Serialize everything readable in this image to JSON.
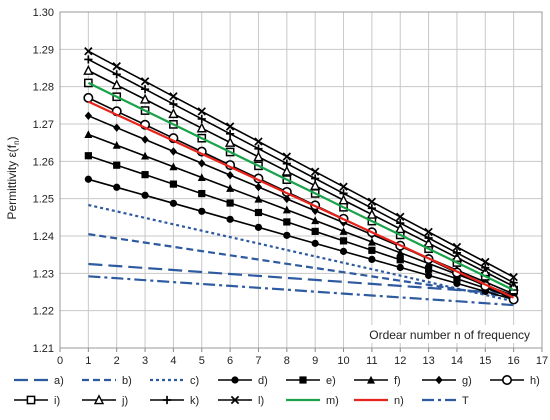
{
  "chart_data": {
    "type": "line",
    "ylabel": "Permittivity ε(f_n)",
    "ylabel_main": "Permittivity ε(f",
    "ylabel_sub": "n",
    "ylabel_end": ")",
    "xlabel": "Ordear number n of frequency",
    "xlim": [
      0,
      17
    ],
    "ylim": [
      1.21,
      1.3
    ],
    "xticks": [
      "0",
      "1",
      "2",
      "3",
      "4",
      "5",
      "6",
      "7",
      "8",
      "9",
      "10",
      "11",
      "12",
      "13",
      "14",
      "15",
      "16",
      "17"
    ],
    "yticks": [
      "1.21",
      "1.22",
      "1.23",
      "1.24",
      "1.25",
      "1.26",
      "1.27",
      "1.28",
      "1.29",
      "1.30"
    ],
    "grid": true,
    "legend_placement": "bottom",
    "x": [
      1,
      2,
      3,
      4,
      5,
      6,
      7,
      8,
      9,
      10,
      11,
      12,
      13,
      14,
      15,
      16
    ],
    "series": [
      {
        "name": "a)",
        "start": 1.2325,
        "end": 1.2245,
        "color": "#2e5aa0",
        "dash": "long",
        "marker": "none"
      },
      {
        "name": "b)",
        "start": 1.2405,
        "end": 1.2235,
        "color": "#2e5aa0",
        "dash": "medium",
        "marker": "none"
      },
      {
        "name": "c)",
        "start": 1.2483,
        "end": 1.2225,
        "color": "#2e5aa0",
        "dash": "short",
        "marker": "none"
      },
      {
        "name": "d)",
        "start": 1.2552,
        "end": 1.223,
        "color": "#000000",
        "dash": "solid",
        "marker": "circle"
      },
      {
        "name": "e)",
        "start": 1.2615,
        "end": 1.2235,
        "color": "#000000",
        "dash": "solid",
        "marker": "square"
      },
      {
        "name": "f)",
        "start": 1.2672,
        "end": 1.224,
        "color": "#000000",
        "dash": "solid",
        "marker": "triangle"
      },
      {
        "name": "g)",
        "start": 1.2722,
        "end": 1.2245,
        "color": "#000000",
        "dash": "solid",
        "marker": "diamond"
      },
      {
        "name": "h)",
        "start": 1.277,
        "end": 1.223,
        "color": "#000000",
        "dash": "solid",
        "marker": "open-circle"
      },
      {
        "name": "i)",
        "start": 1.281,
        "end": 1.2255,
        "color": "#000000",
        "dash": "solid",
        "marker": "open-square"
      },
      {
        "name": "j)",
        "start": 1.2843,
        "end": 1.2265,
        "color": "#000000",
        "dash": "solid",
        "marker": "open-triangle"
      },
      {
        "name": "k)",
        "start": 1.2873,
        "end": 1.2275,
        "color": "#000000",
        "dash": "solid",
        "marker": "plus"
      },
      {
        "name": "l)",
        "start": 1.2895,
        "end": 1.229,
        "color": "#000000",
        "dash": "solid",
        "marker": "cross"
      },
      {
        "name": "m)",
        "start": 1.281,
        "end": 1.2255,
        "color": "#1aa34a",
        "dash": "solid",
        "marker": "none"
      },
      {
        "name": "n)",
        "start": 1.276,
        "end": 1.2235,
        "color": "#e8231c",
        "dash": "solid",
        "marker": "none"
      },
      {
        "name": "T",
        "start": 1.2292,
        "end": 1.2215,
        "color": "#2e5aa0",
        "dash": "dashdot",
        "marker": "none"
      }
    ]
  }
}
